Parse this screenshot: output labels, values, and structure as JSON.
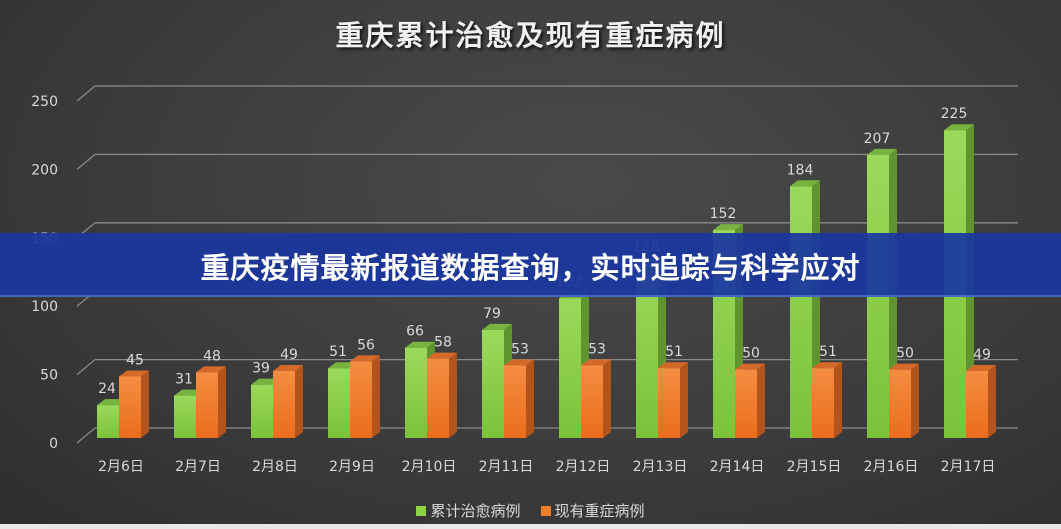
{
  "title": "重庆累计治愈及现有重症病例",
  "banner": {
    "text": "重庆疫情最新报道数据查询，实时追踪与科学应对",
    "color": "#1b37a0"
  },
  "legend": [
    {
      "label": "累计治愈病例",
      "color": "#8cd146"
    },
    {
      "label": "现有重症病例",
      "color": "#f07f2a"
    }
  ],
  "colors": {
    "background": "#3c3c3c",
    "grid": "#8a8a8a",
    "axis_text": "#d9d9d9",
    "green_front": "#8cd146",
    "green_side": "#5f9430",
    "green_top": "#79b33f",
    "orange_front": "#f07f2a",
    "orange_side": "#b2541c",
    "orange_top": "#d5692a"
  },
  "chart_data": {
    "type": "bar",
    "title": "重庆累计治愈及现有重症病例",
    "xlabel": "",
    "ylabel": "",
    "ylim": [
      0,
      250
    ],
    "yticks": [
      0,
      50,
      100,
      150,
      200,
      250
    ],
    "grid": true,
    "legend_position": "bottom",
    "style": "3d-clustered-column",
    "categories": [
      "2月6日",
      "2月7日",
      "2月8日",
      "2月9日",
      "2月10日",
      "2月11日",
      "2月12日",
      "2月13日",
      "2月14日",
      "2月15日",
      "2月16日",
      "2月17日"
    ],
    "series": [
      {
        "name": "累计治愈病例",
        "values": [
          24,
          31,
          39,
          51,
          66,
          79,
          102,
          128,
          152,
          184,
          207,
          225
        ]
      },
      {
        "name": "现有重症病例",
        "values": [
          45,
          48,
          49,
          56,
          58,
          53,
          53,
          51,
          50,
          51,
          50,
          49
        ]
      }
    ]
  }
}
